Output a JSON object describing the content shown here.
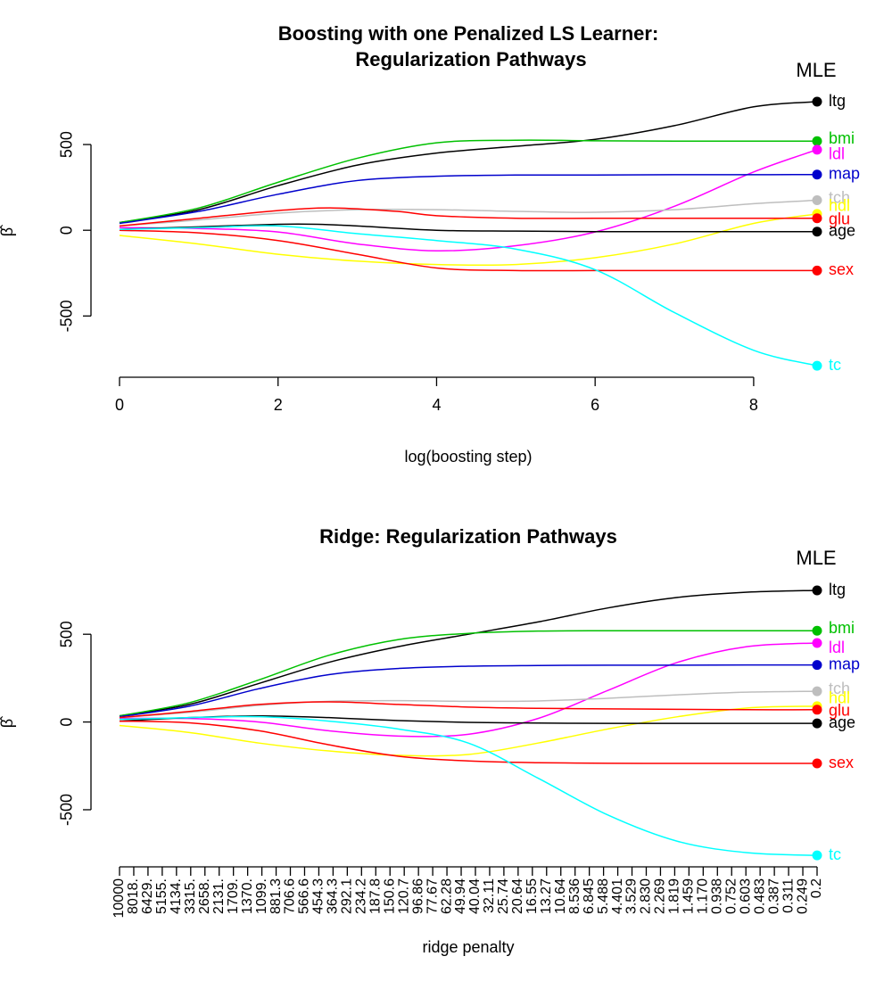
{
  "chart_data": [
    {
      "type": "line",
      "title": "Boosting with one Penalized LS Learner:",
      "subtitle": "Regularization Pathways",
      "xlabel": "log(boosting step)",
      "ylabel": "β̂",
      "xlim": [
        0,
        8.8
      ],
      "ylim": [
        -800,
        750
      ],
      "xticks": [
        "0",
        "2",
        "4",
        "6",
        "8"
      ],
      "yticks": [
        "-500",
        "0",
        "500"
      ],
      "end_marker_label": "MLE",
      "series": [
        {
          "name": "ltg",
          "color": "#000000",
          "points": [
            [
              0,
              45
            ],
            [
              1,
              120
            ],
            [
              2,
              260
            ],
            [
              3,
              380
            ],
            [
              4,
              450
            ],
            [
              5,
              490
            ],
            [
              6,
              530
            ],
            [
              7,
              610
            ],
            [
              8,
              720
            ],
            [
              8.8,
              750
            ]
          ]
        },
        {
          "name": "bmi",
          "color": "#00c000",
          "points": [
            [
              0,
              45
            ],
            [
              1,
              130
            ],
            [
              2,
              280
            ],
            [
              3,
              420
            ],
            [
              4,
              510
            ],
            [
              5,
              525
            ],
            [
              6,
              522
            ],
            [
              7,
              520
            ],
            [
              8,
              520
            ],
            [
              8.8,
              520
            ]
          ]
        },
        {
          "name": "ldl",
          "color": "#ff00ff",
          "points": [
            [
              0,
              15
            ],
            [
              1,
              10
            ],
            [
              2,
              -10
            ],
            [
              3,
              -80
            ],
            [
              4,
              -120
            ],
            [
              5,
              -90
            ],
            [
              6,
              -10
            ],
            [
              7,
              140
            ],
            [
              8,
              340
            ],
            [
              8.8,
              470
            ]
          ]
        },
        {
          "name": "map",
          "color": "#0000cc",
          "points": [
            [
              0,
              40
            ],
            [
              1,
              110
            ],
            [
              2,
              210
            ],
            [
              3,
              290
            ],
            [
              4,
              315
            ],
            [
              5,
              322
            ],
            [
              6,
              322
            ],
            [
              7,
              324
            ],
            [
              8,
              324
            ],
            [
              8.8,
              325
            ]
          ]
        },
        {
          "name": "tch",
          "color": "#bebebe",
          "points": [
            [
              0,
              25
            ],
            [
              1,
              60
            ],
            [
              2,
              100
            ],
            [
              3,
              120
            ],
            [
              4,
              120
            ],
            [
              5,
              110
            ],
            [
              6,
              105
            ],
            [
              7,
              120
            ],
            [
              8,
              155
            ],
            [
              8.8,
              175
            ]
          ]
        },
        {
          "name": "hdl",
          "color": "#ffff00",
          "points": [
            [
              0,
              -30
            ],
            [
              1,
              -80
            ],
            [
              2,
              -140
            ],
            [
              3,
              -180
            ],
            [
              4,
              -200
            ],
            [
              5,
              -200
            ],
            [
              6,
              -160
            ],
            [
              7,
              -80
            ],
            [
              8,
              40
            ],
            [
              8.8,
              95
            ]
          ]
        },
        {
          "name": "glu",
          "color": "#ff0000",
          "points": [
            [
              0,
              25
            ],
            [
              1,
              70
            ],
            [
              2,
              115
            ],
            [
              2.7,
              130
            ],
            [
              3.5,
              110
            ],
            [
              4,
              85
            ],
            [
              5,
              70
            ],
            [
              6,
              70
            ],
            [
              7,
              70
            ],
            [
              8,
              70
            ],
            [
              8.8,
              70
            ]
          ]
        },
        {
          "name": "age",
          "color": "#000000",
          "points": [
            [
              0,
              5
            ],
            [
              1,
              20
            ],
            [
              2,
              35
            ],
            [
              2.5,
              35
            ],
            [
              3,
              25
            ],
            [
              4,
              0
            ],
            [
              5,
              -5
            ],
            [
              6,
              -8
            ],
            [
              7,
              -8
            ],
            [
              8,
              -8
            ],
            [
              8.8,
              -8
            ]
          ]
        },
        {
          "name": "sex",
          "color": "#ff0000",
          "points": [
            [
              0,
              0
            ],
            [
              1,
              -15
            ],
            [
              2,
              -60
            ],
            [
              3,
              -140
            ],
            [
              4,
              -220
            ],
            [
              5,
              -235
            ],
            [
              6,
              -235
            ],
            [
              7,
              -235
            ],
            [
              8,
              -235
            ],
            [
              8.8,
              -235
            ]
          ]
        },
        {
          "name": "tc",
          "color": "#00ffff",
          "points": [
            [
              0,
              5
            ],
            [
              1,
              15
            ],
            [
              2,
              25
            ],
            [
              3,
              -20
            ],
            [
              4,
              -60
            ],
            [
              5,
              -110
            ],
            [
              6,
              -230
            ],
            [
              7,
              -480
            ],
            [
              8,
              -700
            ],
            [
              8.8,
              -790
            ]
          ]
        }
      ]
    },
    {
      "type": "line",
      "title": "Ridge: Regularization Pathways",
      "xlabel": "ridge penalty",
      "ylabel": "β̂",
      "xlim": [
        0,
        1
      ],
      "ylim": [
        -800,
        750
      ],
      "yticks": [
        "-500",
        "0",
        "500"
      ],
      "xticks": [
        "10000",
        "8018.",
        "6429.",
        "5155.",
        "4134.",
        "3315.",
        "2658.",
        "2131.",
        "1709.",
        "1370.",
        "1099.",
        "881.3",
        "706.6",
        "566.6",
        "454.3",
        "364.3",
        "292.1",
        "234.2",
        "187.8",
        "150.6",
        "120.7",
        "96.86",
        "77.67",
        "62.28",
        "49.94",
        "40.04",
        "32.11",
        "25.74",
        "20.64",
        "16.55",
        "13.27",
        "10.64",
        "8.536",
        "6.845",
        "5.488",
        "4.401",
        "3.529",
        "2.830",
        "2.269",
        "1.819",
        "1.459",
        "1.170",
        "0.938",
        "0.752",
        "0.603",
        "0.483",
        "0.387",
        "0.311",
        "0.249",
        "0.2"
      ],
      "end_marker_label": "MLE",
      "series": [
        {
          "name": "ltg",
          "color": "#000000",
          "points": [
            [
              0,
              35
            ],
            [
              0.1,
              100
            ],
            [
              0.2,
              220
            ],
            [
              0.3,
              340
            ],
            [
              0.4,
              430
            ],
            [
              0.5,
              500
            ],
            [
              0.6,
              570
            ],
            [
              0.7,
              650
            ],
            [
              0.8,
              710
            ],
            [
              0.9,
              740
            ],
            [
              1,
              750
            ]
          ]
        },
        {
          "name": "bmi",
          "color": "#00c000",
          "points": [
            [
              0,
              35
            ],
            [
              0.1,
              110
            ],
            [
              0.2,
              240
            ],
            [
              0.3,
              380
            ],
            [
              0.4,
              470
            ],
            [
              0.5,
              505
            ],
            [
              0.6,
              518
            ],
            [
              0.7,
              520
            ],
            [
              0.8,
              520
            ],
            [
              0.9,
              520
            ],
            [
              1,
              520
            ]
          ]
        },
        {
          "name": "ldl",
          "color": "#ff00ff",
          "points": [
            [
              0,
              20
            ],
            [
              0.1,
              20
            ],
            [
              0.2,
              0
            ],
            [
              0.3,
              -50
            ],
            [
              0.4,
              -80
            ],
            [
              0.5,
              -70
            ],
            [
              0.6,
              20
            ],
            [
              0.7,
              180
            ],
            [
              0.8,
              340
            ],
            [
              0.9,
              430
            ],
            [
              1,
              450
            ]
          ]
        },
        {
          "name": "map",
          "color": "#0000cc",
          "points": [
            [
              0,
              30
            ],
            [
              0.1,
              90
            ],
            [
              0.2,
              190
            ],
            [
              0.3,
              270
            ],
            [
              0.4,
              305
            ],
            [
              0.5,
              318
            ],
            [
              0.6,
              322
            ],
            [
              0.7,
              324
            ],
            [
              0.8,
              324
            ],
            [
              0.9,
              325
            ],
            [
              1,
              325
            ]
          ]
        },
        {
          "name": "tch",
          "color": "#bebebe",
          "points": [
            [
              0,
              25
            ],
            [
              0.1,
              55
            ],
            [
              0.2,
              95
            ],
            [
              0.3,
              118
            ],
            [
              0.4,
              122
            ],
            [
              0.5,
              118
            ],
            [
              0.6,
              120
            ],
            [
              0.7,
              135
            ],
            [
              0.8,
              155
            ],
            [
              0.9,
              170
            ],
            [
              1,
              175
            ]
          ]
        },
        {
          "name": "hdl",
          "color": "#ffff00",
          "points": [
            [
              0,
              -20
            ],
            [
              0.1,
              -60
            ],
            [
              0.2,
              -120
            ],
            [
              0.3,
              -165
            ],
            [
              0.4,
              -190
            ],
            [
              0.5,
              -185
            ],
            [
              0.6,
              -120
            ],
            [
              0.7,
              -40
            ],
            [
              0.8,
              30
            ],
            [
              0.9,
              80
            ],
            [
              1,
              90
            ]
          ]
        },
        {
          "name": "glu",
          "color": "#ff0000",
          "points": [
            [
              0,
              25
            ],
            [
              0.1,
              60
            ],
            [
              0.2,
              100
            ],
            [
              0.3,
              115
            ],
            [
              0.4,
              100
            ],
            [
              0.5,
              85
            ],
            [
              0.6,
              78
            ],
            [
              0.7,
              75
            ],
            [
              0.8,
              72
            ],
            [
              0.9,
              70
            ],
            [
              1,
              70
            ]
          ]
        },
        {
          "name": "age",
          "color": "#000000",
          "points": [
            [
              0,
              5
            ],
            [
              0.1,
              25
            ],
            [
              0.2,
              35
            ],
            [
              0.3,
              25
            ],
            [
              0.4,
              8
            ],
            [
              0.5,
              -2
            ],
            [
              0.6,
              -6
            ],
            [
              0.7,
              -8
            ],
            [
              0.8,
              -8
            ],
            [
              0.9,
              -8
            ],
            [
              1,
              -8
            ]
          ]
        },
        {
          "name": "sex",
          "color": "#ff0000",
          "points": [
            [
              0,
              5
            ],
            [
              0.1,
              -5
            ],
            [
              0.2,
              -50
            ],
            [
              0.3,
              -130
            ],
            [
              0.4,
              -195
            ],
            [
              0.5,
              -222
            ],
            [
              0.6,
              -232
            ],
            [
              0.7,
              -235
            ],
            [
              0.8,
              -236
            ],
            [
              0.9,
              -236
            ],
            [
              1,
              -236
            ]
          ]
        },
        {
          "name": "tc",
          "color": "#00ffff",
          "points": [
            [
              0,
              15
            ],
            [
              0.1,
              25
            ],
            [
              0.2,
              30
            ],
            [
              0.3,
              5
            ],
            [
              0.4,
              -40
            ],
            [
              0.5,
              -120
            ],
            [
              0.6,
              -320
            ],
            [
              0.7,
              -530
            ],
            [
              0.8,
              -680
            ],
            [
              0.9,
              -745
            ],
            [
              1,
              -760
            ]
          ]
        }
      ]
    }
  ]
}
